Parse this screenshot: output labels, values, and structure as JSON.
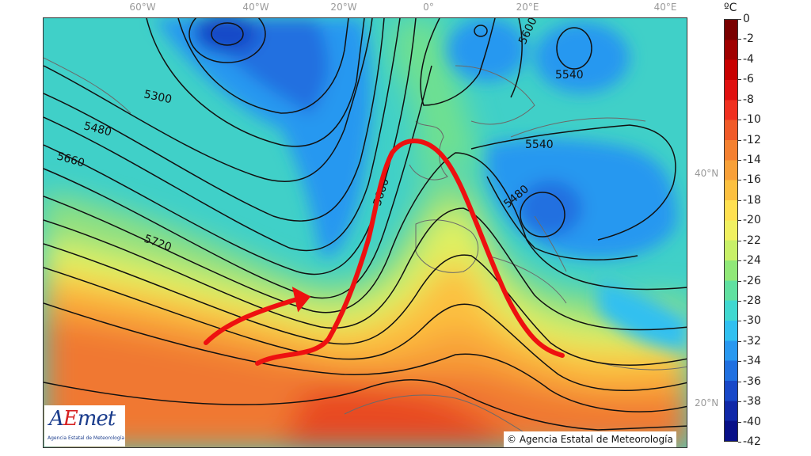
{
  "longitude_labels": [
    {
      "text": "60°W",
      "id": "60w"
    },
    {
      "text": "40°W",
      "id": "40w"
    },
    {
      "text": "20°W",
      "id": "20w"
    },
    {
      "text": "0°",
      "id": "0"
    },
    {
      "text": "20°E",
      "id": "20e"
    },
    {
      "text": "40°E",
      "id": "40e"
    }
  ],
  "latitude_labels": [
    {
      "text": "40°N",
      "id": "40n"
    },
    {
      "text": "20°N",
      "id": "20n"
    }
  ],
  "contour_labels": [
    "5300",
    "5480",
    "5660",
    "5720",
    "5600",
    "5540",
    "5540",
    "5480",
    "5600"
  ],
  "colorbar": {
    "unit": "ºC",
    "ticks": [
      "0",
      "-2",
      "-4",
      "-6",
      "-8",
      "-10",
      "-12",
      "-14",
      "-16",
      "-18",
      "-20",
      "-22",
      "-24",
      "-26",
      "-28",
      "-30",
      "-32",
      "-34",
      "-36",
      "-38",
      "-40",
      "-42"
    ],
    "colors": [
      "#7a0000",
      "#a00000",
      "#c80000",
      "#e01010",
      "#f03020",
      "#f05a28",
      "#f48030",
      "#f8a038",
      "#fcc040",
      "#ffe050",
      "#f0f060",
      "#c8f068",
      "#90e878",
      "#60e0a0",
      "#40d8d0",
      "#30c0f0",
      "#2898f0",
      "#2070e0",
      "#1848c8",
      "#1028a8",
      "#081088"
    ]
  },
  "logo": {
    "word_a": "A",
    "word_e": "E",
    "word_rest": "met",
    "subtitle": "Agencia Estatal de Meteorología"
  },
  "copyright": "© Agencia Estatal de Meteorología"
}
